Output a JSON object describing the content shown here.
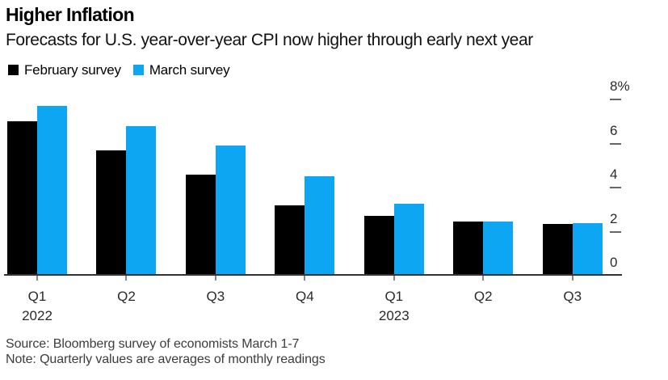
{
  "header": {
    "title": "Higher Inflation",
    "subtitle": "Forecasts for U.S. year-over-year CPI now higher through early next year"
  },
  "legend": [
    {
      "label": "February survey",
      "color": "#000000"
    },
    {
      "label": "March survey",
      "color": "#0ca6f2"
    }
  ],
  "chart_data": {
    "type": "bar",
    "title": "Higher Inflation",
    "subtitle": "Forecasts for U.S. year-over-year CPI now higher through early next year",
    "categories": [
      "Q1",
      "Q2",
      "Q3",
      "Q4",
      "Q1",
      "Q2",
      "Q3"
    ],
    "year_labels": [
      {
        "text": "2022",
        "index": 0
      },
      {
        "text": "2023",
        "index": 4
      }
    ],
    "series": [
      {
        "name": "February survey",
        "color": "#000000",
        "values": [
          7.0,
          5.7,
          4.6,
          3.2,
          2.7,
          2.45,
          2.35
        ]
      },
      {
        "name": "March survey",
        "color": "#0ca6f2",
        "values": [
          7.7,
          6.8,
          5.9,
          4.5,
          3.25,
          2.45,
          2.4
        ]
      }
    ],
    "unit": "%",
    "yticks": [
      {
        "label": "8%",
        "value": 8
      },
      {
        "label": "6",
        "value": 6
      },
      {
        "label": "4",
        "value": 4
      },
      {
        "label": "2",
        "value": 2
      },
      {
        "label": "0",
        "value": 0
      }
    ],
    "ylim": [
      0,
      8.8
    ],
    "grid": false,
    "legend_position": "top-left",
    "y_axis_side": "right"
  },
  "footer": {
    "source": "Source: Bloomberg survey of economists March 1-7",
    "note": "Note: Quarterly values are averages of monthly readings"
  }
}
